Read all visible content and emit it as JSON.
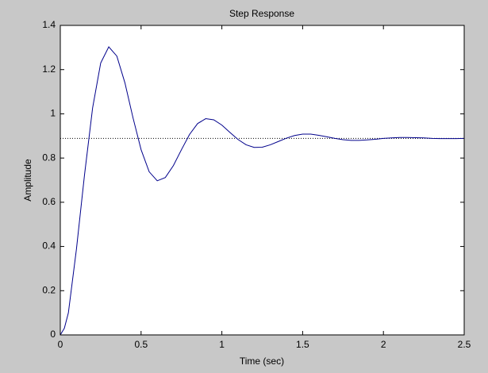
{
  "chart_data": {
    "type": "line",
    "title": "Step Response",
    "xlabel": "Time (sec)",
    "ylabel": "Amplitude",
    "x": [
      0,
      0.025,
      0.05,
      0.1,
      0.15,
      0.2,
      0.25,
      0.3,
      0.35,
      0.4,
      0.45,
      0.5,
      0.55,
      0.6,
      0.65,
      0.7,
      0.75,
      0.8,
      0.85,
      0.9,
      0.95,
      1.0,
      1.05,
      1.1,
      1.15,
      1.2,
      1.25,
      1.3,
      1.35,
      1.4,
      1.45,
      1.5,
      1.55,
      1.6,
      1.65,
      1.7,
      1.75,
      1.8,
      1.85,
      1.9,
      1.95,
      2.0,
      2.05,
      2.1,
      2.15,
      2.2,
      2.25,
      2.3,
      2.35,
      2.4,
      2.45,
      2.5
    ],
    "series": [
      {
        "color": "#00008b",
        "values": [
          0,
          0.03,
          0.1,
          0.389,
          0.725,
          1.027,
          1.23,
          1.303,
          1.261,
          1.14,
          0.982,
          0.838,
          0.738,
          0.697,
          0.712,
          0.766,
          0.838,
          0.907,
          0.956,
          0.978,
          0.973,
          0.949,
          0.916,
          0.884,
          0.86,
          0.848,
          0.849,
          0.86,
          0.875,
          0.89,
          0.902,
          0.908,
          0.908,
          0.903,
          0.896,
          0.889,
          0.883,
          0.88,
          0.88,
          0.882,
          0.885,
          0.889,
          0.891,
          0.893,
          0.893,
          0.892,
          0.891,
          0.889,
          0.888,
          0.888,
          0.888,
          0.889
        ]
      }
    ],
    "steady_state": 0.889,
    "steady_state_color": "#000000",
    "xlim": [
      0,
      2.5
    ],
    "xticks": [
      0,
      0.5,
      1,
      1.5,
      2,
      2.5
    ],
    "ylim": [
      0,
      1.4
    ],
    "yticks": [
      0,
      0.2,
      0.4,
      0.6,
      0.8,
      1,
      1.2,
      1.4
    ],
    "grid": false
  }
}
